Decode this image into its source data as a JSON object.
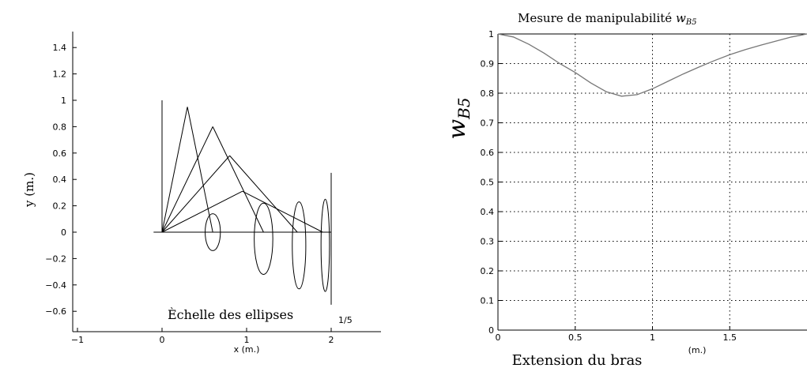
{
  "chart_data": [
    {
      "type": "line",
      "subtype": "kinematic-ellipse-plot",
      "title": "",
      "xlabel": "x (m.)",
      "ylabel": "y (m.)",
      "xlim": [
        -1.05,
        2.55
      ],
      "ylim": [
        -0.75,
        1.5
      ],
      "xticks": [
        "−1",
        "0",
        "1",
        "2"
      ],
      "yticks": [
        "1.4",
        "1.2",
        "1",
        "0.8",
        "0.6",
        "0.4",
        "0.2",
        "0",
        "−0.2",
        "−0.4",
        "−0.6"
      ],
      "xtick_values": [
        -1,
        0,
        1,
        2
      ],
      "ytick_values": [
        1.4,
        1.2,
        1,
        0.8,
        0.6,
        0.4,
        0.2,
        0,
        -0.2,
        -0.4,
        -0.6
      ],
      "grid": false,
      "annotation": "Èchelle des ellipses",
      "scale_label": "1/5",
      "reference_lines": [
        {
          "from": [
            -0.1,
            0
          ],
          "to": [
            2,
            0
          ]
        },
        {
          "from": [
            0,
            0
          ],
          "to": [
            0,
            1.0
          ]
        },
        {
          "from": [
            2,
            -0.55
          ],
          "to": [
            2,
            0.45
          ]
        }
      ],
      "arm_configurations": [
        {
          "joint": [
            0.3,
            0.95
          ],
          "tip": [
            0.6,
            0.0
          ]
        },
        {
          "joint": [
            0.6,
            0.8
          ],
          "tip": [
            1.2,
            0.0
          ]
        },
        {
          "joint": [
            0.8,
            0.58
          ],
          "tip": [
            1.6,
            0.0
          ]
        },
        {
          "joint": [
            0.95,
            0.31
          ],
          "tip": [
            1.9,
            0.0
          ]
        }
      ],
      "ellipses": [
        {
          "center": [
            0.6,
            0.0
          ],
          "rx": 0.09,
          "ry": 0.14
        },
        {
          "center": [
            1.2,
            -0.05
          ],
          "rx": 0.11,
          "ry": 0.27
        },
        {
          "center": [
            1.62,
            -0.1
          ],
          "rx": 0.08,
          "ry": 0.33
        },
        {
          "center": [
            1.93,
            -0.1
          ],
          "rx": 0.05,
          "ry": 0.35
        }
      ]
    },
    {
      "type": "line",
      "title": "Mesure de manipulabilité ",
      "title_var": "w",
      "title_sub": "B5",
      "xlabel": "Extension du bras",
      "xunit": "(m.)",
      "ylabel_var": "w",
      "ylabel_sub": "B5",
      "xlim": [
        0,
        2
      ],
      "ylim": [
        0,
        1
      ],
      "xticks": [
        "0",
        "0.5",
        "1",
        "1.5"
      ],
      "xtick_values": [
        0,
        0.5,
        1,
        1.5
      ],
      "yticks": [
        "1",
        "0.9",
        "0.8",
        "0.7",
        "0.6",
        "0.5",
        "0.4",
        "0.3",
        "0.2",
        "0.1",
        "0"
      ],
      "ytick_values": [
        1,
        0.9,
        0.8,
        0.7,
        0.6,
        0.5,
        0.4,
        0.3,
        0.2,
        0.1,
        0
      ],
      "grid": true,
      "series": [
        {
          "x": [
            0,
            0.1,
            0.2,
            0.3,
            0.4,
            0.5,
            0.6,
            0.7,
            0.8,
            0.9,
            1.0,
            1.1,
            1.2,
            1.3,
            1.4,
            1.5,
            1.6,
            1.7,
            1.8,
            1.9,
            2.0
          ],
          "values": [
            1.0,
            0.99,
            0.965,
            0.935,
            0.9,
            0.87,
            0.835,
            0.805,
            0.79,
            0.795,
            0.815,
            0.84,
            0.865,
            0.888,
            0.91,
            0.93,
            0.947,
            0.962,
            0.976,
            0.99,
            1.0
          ]
        }
      ]
    }
  ]
}
